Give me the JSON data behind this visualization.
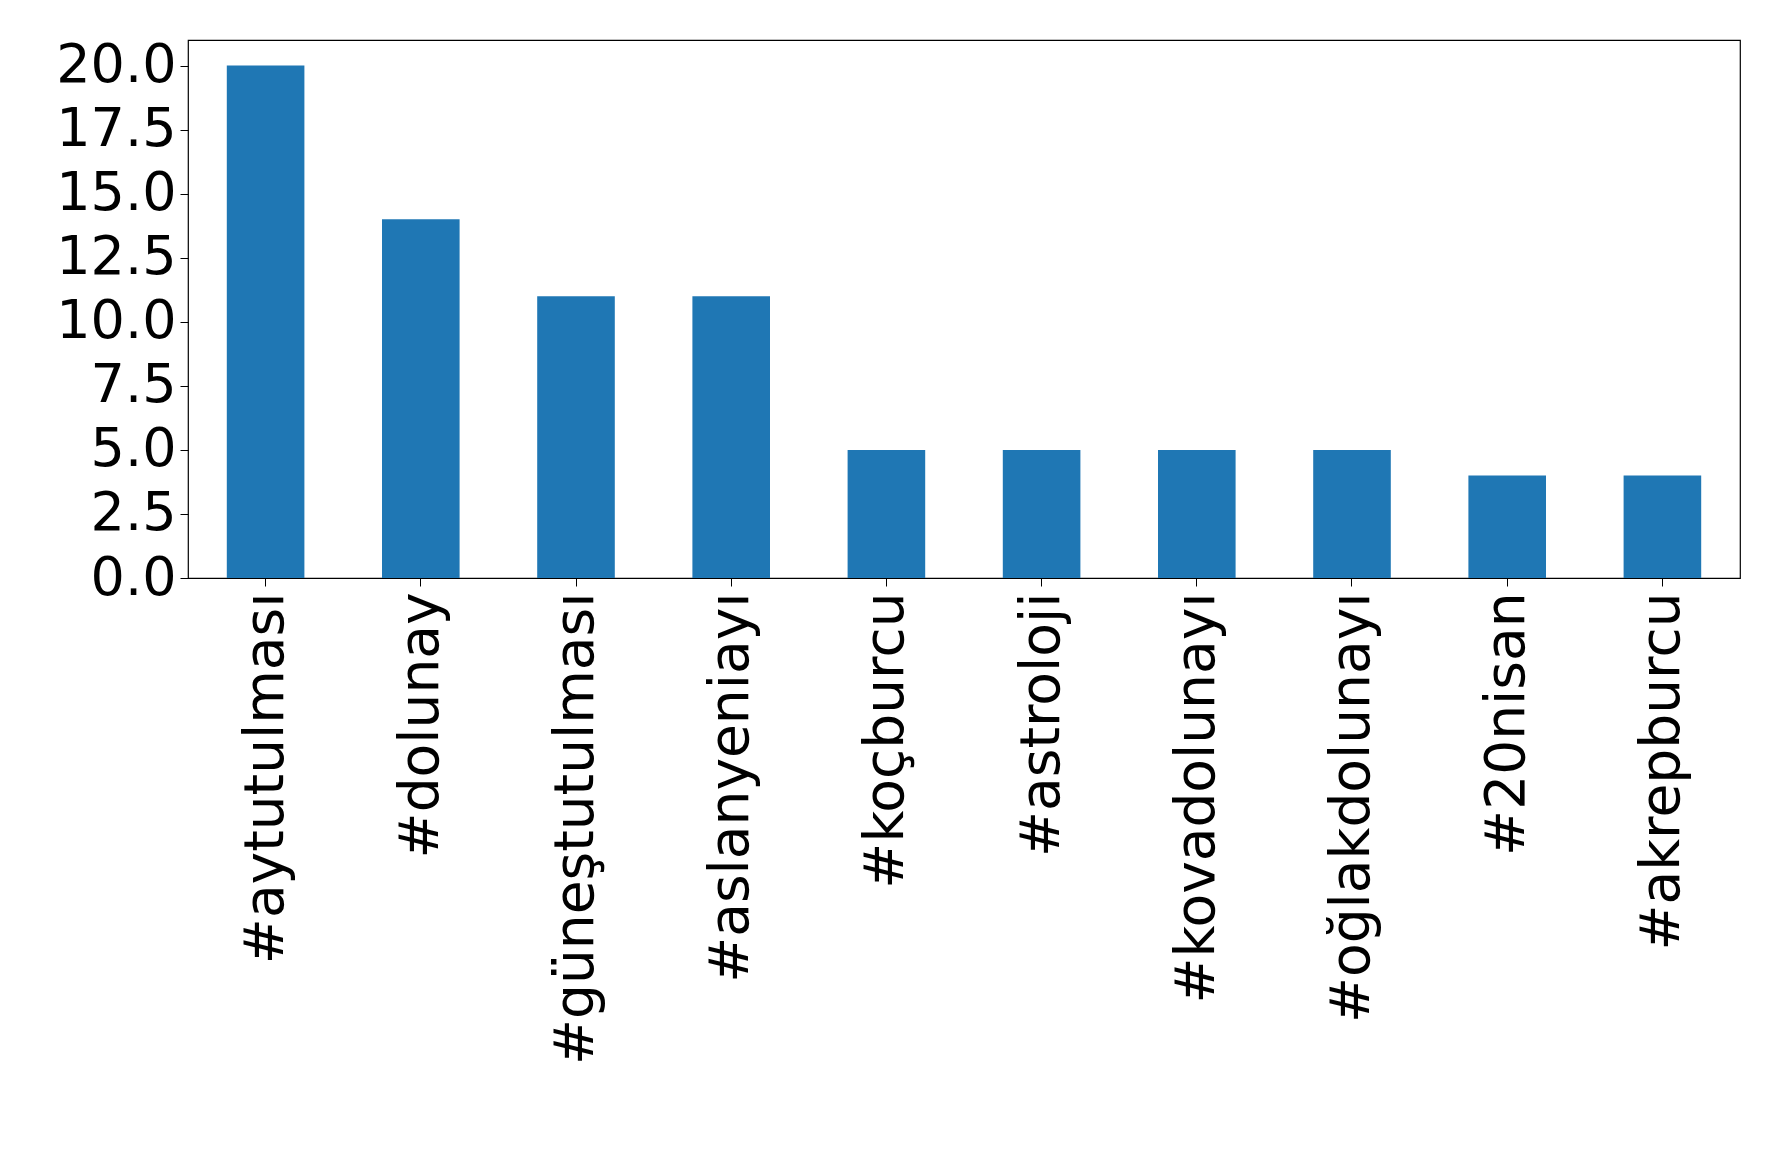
{
  "chart_data": {
    "type": "bar",
    "categories": [
      "#aytutulması",
      "#dolunay",
      "#güneştutulması",
      "#aslanyeniayı",
      "#koçburcu",
      "#astroloji",
      "#kovadolunayı",
      "#oğlakdolunayı",
      "#20nisan",
      "#akrepburcu"
    ],
    "values": [
      20,
      14,
      11,
      11,
      5,
      5,
      5,
      5,
      4,
      4
    ],
    "color": "#1f77b4",
    "ylim": [
      0,
      21
    ],
    "yticks": [
      {
        "value": 0,
        "label": "0.0"
      },
      {
        "value": 2.5,
        "label": "2.5"
      },
      {
        "value": 5,
        "label": "5.0"
      },
      {
        "value": 7.5,
        "label": "7.5"
      },
      {
        "value": 10,
        "label": "10.0"
      },
      {
        "value": 12.5,
        "label": "12.5"
      },
      {
        "value": 15,
        "label": "15.0"
      },
      {
        "value": 17.5,
        "label": "17.5"
      },
      {
        "value": 20,
        "label": "20.0"
      }
    ],
    "grid": false
  }
}
